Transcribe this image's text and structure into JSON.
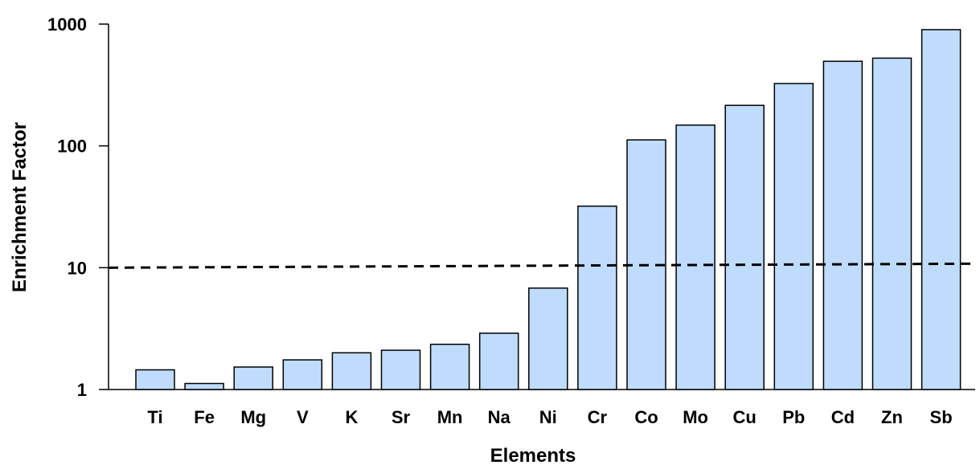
{
  "chart_data": {
    "type": "bar",
    "xlabel": "Elements",
    "ylabel": "Enrichment Factor",
    "yscale": "log",
    "ylim": [
      1,
      1000
    ],
    "yticks": [
      "1",
      "10",
      "100",
      "1000"
    ],
    "categories": [
      "Ti",
      "Fe",
      "Mg",
      "V",
      "K",
      "Sr",
      "Mn",
      "Na",
      "Ni",
      "Cr",
      "Co",
      "Mo",
      "Cu",
      "Pb",
      "Cd",
      "Zn",
      "Sb"
    ],
    "values": [
      1.45,
      1.12,
      1.53,
      1.75,
      2.0,
      2.1,
      2.35,
      2.9,
      6.8,
      32,
      112,
      148,
      215,
      325,
      495,
      525,
      900
    ],
    "reference_line": {
      "value": 10,
      "style": "dashed"
    },
    "grid": false,
    "bar_color": "#bfdcff"
  }
}
